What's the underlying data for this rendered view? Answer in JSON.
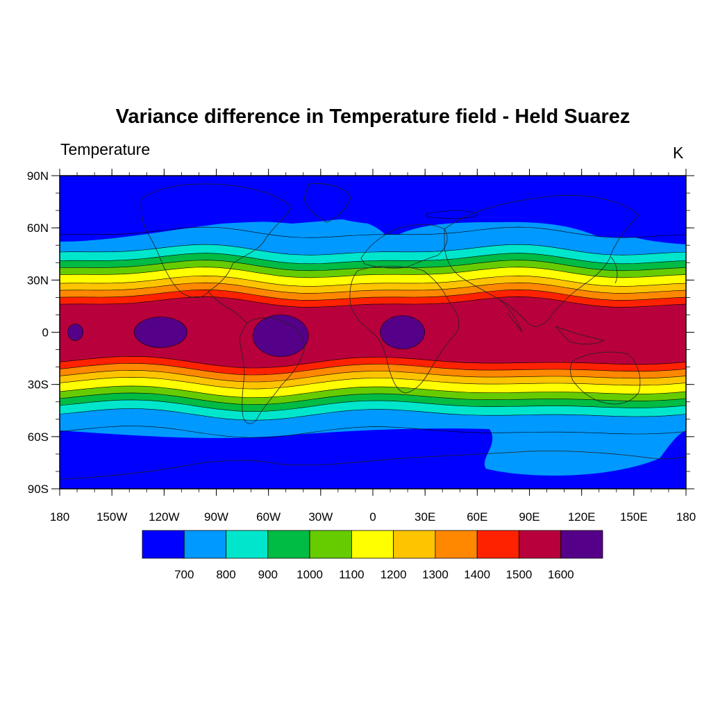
{
  "title": "Variance difference in Temperature field  - Held Suarez",
  "left_label": "Temperature",
  "right_label": "K",
  "map": {
    "projection": "cylindrical-equidistant",
    "lon_range": [
      -180,
      180
    ],
    "lat_range": [
      -90,
      90
    ],
    "coastlines": true
  },
  "axes": {
    "x_ticks": [
      {
        "lon": -180,
        "label": "180"
      },
      {
        "lon": -150,
        "label": "150W"
      },
      {
        "lon": -120,
        "label": "120W"
      },
      {
        "lon": -90,
        "label": "90W"
      },
      {
        "lon": -60,
        "label": "60W"
      },
      {
        "lon": -30,
        "label": "30W"
      },
      {
        "lon": 0,
        "label": "0"
      },
      {
        "lon": 30,
        "label": "30E"
      },
      {
        "lon": 60,
        "label": "60E"
      },
      {
        "lon": 90,
        "label": "90E"
      },
      {
        "lon": 120,
        "label": "120E"
      },
      {
        "lon": 150,
        "label": "150E"
      },
      {
        "lon": 180,
        "label": "180"
      }
    ],
    "y_ticks": [
      {
        "lat": 90,
        "label": "90N"
      },
      {
        "lat": 60,
        "label": "60N"
      },
      {
        "lat": 30,
        "label": "30N"
      },
      {
        "lat": 0,
        "label": "0"
      },
      {
        "lat": -30,
        "label": "30S"
      },
      {
        "lat": -60,
        "label": "60S"
      },
      {
        "lat": -90,
        "label": "90S"
      }
    ]
  },
  "colorbar": {
    "colors": [
      "#0000ff",
      "#0099ff",
      "#00e6cc",
      "#00bb44",
      "#66cc00",
      "#ffff00",
      "#ffc400",
      "#ff8800",
      "#ff2200",
      "#b8003c",
      "#550088"
    ],
    "labels": [
      "700",
      "800",
      "900",
      "1000",
      "1100",
      "1200",
      "1300",
      "1400",
      "1500",
      "1600"
    ]
  },
  "chart_data": {
    "type": "heatmap",
    "variable": "Temperature",
    "units": "K",
    "levels": [
      700,
      800,
      900,
      1000,
      1100,
      1200,
      1300,
      1400,
      1500,
      1600
    ],
    "band_boundaries_north_lat": [
      57,
      47,
      42,
      38,
      34,
      29,
      25,
      21,
      17
    ],
    "band_boundaries_south_lat": [
      -57,
      -47,
      -42,
      -38,
      -34,
      -29,
      -25,
      -21,
      -17
    ],
    "max_region_centers": [
      {
        "lon": -122,
        "lat": 0
      },
      {
        "lon": -53,
        "lat": -2
      },
      {
        "lon": 17,
        "lat": 0
      },
      {
        "lon": -171,
        "lat": 0
      }
    ]
  }
}
